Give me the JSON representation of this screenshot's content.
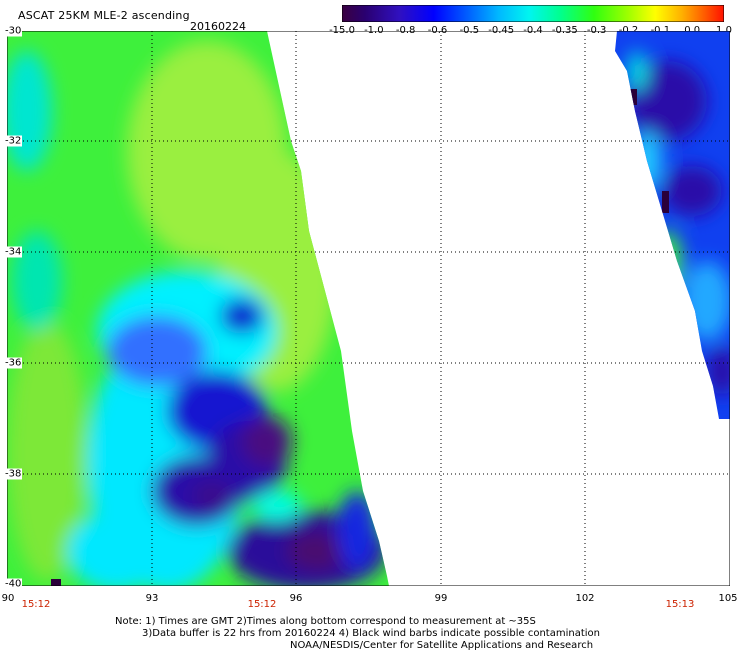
{
  "title": "ASCAT 25KM MLE-2 ascending",
  "date": "20160224",
  "colorbar": {
    "labels": [
      "-15.0",
      "-1.0",
      "-0.8",
      "-0.6",
      "-0.5",
      "-0.45",
      "-0.4",
      "-0.35",
      "-0.3",
      "-0.2",
      "-0.1",
      "0.0",
      "1.0"
    ],
    "colors": [
      "#3a0040",
      "#2a0080",
      "#3210c8",
      "#0000ff",
      "#0050ff",
      "#00a8ff",
      "#00f0f0",
      "#00ffa0",
      "#20ff20",
      "#90ff00",
      "#ffff00",
      "#ffb000",
      "#ff5000",
      "#ff0000"
    ]
  },
  "map": {
    "lon_labels": [
      "90",
      "93",
      "96",
      "99",
      "102",
      "105"
    ],
    "lat_labels": [
      "-30",
      "-32",
      "-34",
      "-36",
      "-38",
      "-40"
    ],
    "time_labels": [
      "15:12",
      "15:12",
      "15:13"
    ]
  },
  "notes": [
    "Note: 1) Times are GMT 2)Times along bottom correspond to measurement at ~35S",
    "3)Data buffer is 22 hrs from 20160224 4) Black wind barbs indicate possible contamination",
    "NOAA/NESDIS/Center for Satellite Applications and Research"
  ]
}
